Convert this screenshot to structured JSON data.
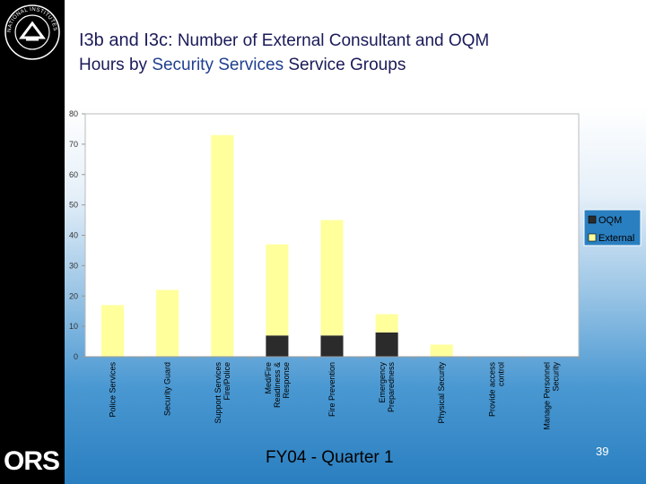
{
  "slide": {
    "title_line1_code": "I3b and I3c:",
    "title_line1_text": "Number of External Consultant and OQM",
    "title_line2_pre": "Hours by",
    "title_line2_highlight": "Security Services",
    "title_line2_post": "Service Groups",
    "footer": "FY04 - Quarter 1",
    "page_number": "39",
    "logo_text": "ORS",
    "seal_text": "NATIONAL INSTITUTES OF HEALTH"
  },
  "colors": {
    "oqm": "#2b2b2b",
    "external": "#ffff9c",
    "plot_background": "#ffffff",
    "sidebar": "#000000",
    "legend_box": "#2a7fc0"
  },
  "chart_data": {
    "type": "bar",
    "stacked": true,
    "categories": [
      [
        "Police Services"
      ],
      [
        "Security Guard"
      ],
      [
        "Support Services",
        "Fire/Police"
      ],
      [
        "Med/Fire",
        "Readiness &",
        "Response"
      ],
      [
        "Fire Prevention"
      ],
      [
        "Emergency",
        "Preparedness"
      ],
      [
        "Physical Security"
      ],
      [
        "Provide access",
        "control"
      ],
      [
        "Manage Personnel",
        "Security"
      ]
    ],
    "series": [
      {
        "name": "OQM",
        "values": [
          0,
          0,
          0,
          7,
          7,
          8,
          0,
          0,
          0
        ]
      },
      {
        "name": "External",
        "values": [
          17,
          22,
          73,
          30,
          38,
          6,
          4,
          0,
          0
        ]
      }
    ],
    "y_ticks": [
      "0",
      "10",
      "20",
      "30",
      "40",
      "50",
      "60",
      "70",
      "80"
    ],
    "ylim": [
      0,
      80
    ],
    "grid": false,
    "legend_position": "right",
    "label_orientation": "vertical"
  }
}
